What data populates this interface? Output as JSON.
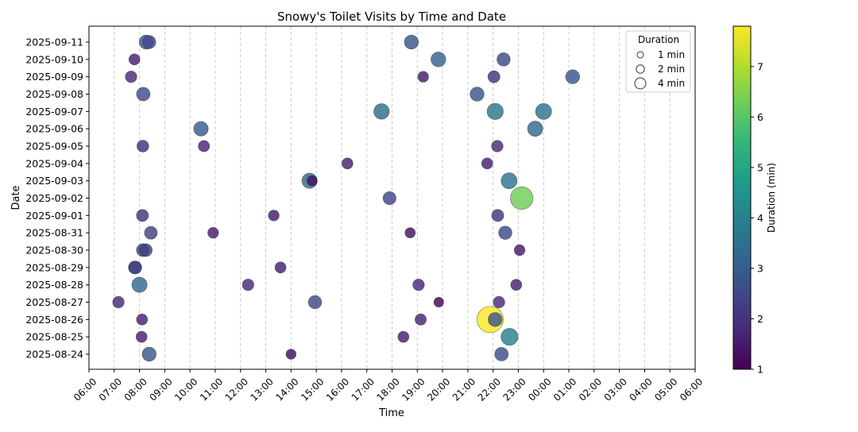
{
  "chart_data": {
    "type": "scatter",
    "title": "Snowy's Toilet Visits by Time and Date",
    "xlabel": "Time",
    "ylabel": "Date",
    "x_ticks": [
      "06:00",
      "07:00",
      "08:00",
      "09:00",
      "10:00",
      "11:00",
      "12:00",
      "13:00",
      "14:00",
      "15:00",
      "16:00",
      "17:00",
      "18:00",
      "19:00",
      "20:00",
      "21:00",
      "22:00",
      "23:00",
      "00:00",
      "01:00",
      "02:00",
      "03:00",
      "04:00",
      "05:00",
      "06:00"
    ],
    "x_range": [
      "06:00",
      "06:00 (next day)"
    ],
    "dates": [
      "2025-08-24",
      "2025-08-25",
      "2025-08-26",
      "2025-08-27",
      "2025-08-28",
      "2025-08-29",
      "2025-08-30",
      "2025-08-31",
      "2025-09-01",
      "2025-09-02",
      "2025-09-03",
      "2025-09-04",
      "2025-09-05",
      "2025-09-06",
      "2025-09-07",
      "2025-09-08",
      "2025-09-09",
      "2025-09-10",
      "2025-09-11"
    ],
    "grid": "vertical dashed",
    "colorbar": {
      "label": "Duration (min)",
      "ticks": [
        1,
        2,
        3,
        4,
        5,
        6,
        7
      ],
      "range": [
        1,
        7.8
      ],
      "colormap": "viridis"
    },
    "legend": {
      "title": "Duration",
      "position": "upper-right",
      "entries": [
        {
          "label": "1 min",
          "duration": 1
        },
        {
          "label": "2 min",
          "duration": 2
        },
        {
          "label": "4 min",
          "duration": 4
        }
      ]
    },
    "points": [
      {
        "date": "2025-08-24",
        "time": "08:23",
        "duration": 2.8
      },
      {
        "date": "2025-08-24",
        "time": "14:00",
        "duration": 1.2
      },
      {
        "date": "2025-08-24",
        "time": "22:20",
        "duration": 2.6
      },
      {
        "date": "2025-08-25",
        "time": "08:05",
        "duration": 1.6
      },
      {
        "date": "2025-08-25",
        "time": "18:27",
        "duration": 1.6
      },
      {
        "date": "2025-08-25",
        "time": "22:39",
        "duration": 4.0
      },
      {
        "date": "2025-08-26",
        "time": "08:06",
        "duration": 1.6
      },
      {
        "date": "2025-08-26",
        "time": "19:08",
        "duration": 1.7
      },
      {
        "date": "2025-08-26",
        "time": "21:53",
        "duration": 7.8
      },
      {
        "date": "2025-08-26",
        "time": "22:05",
        "duration": 2.8
      },
      {
        "date": "2025-08-27",
        "time": "07:10",
        "duration": 1.8
      },
      {
        "date": "2025-08-27",
        "time": "14:57",
        "duration": 2.5
      },
      {
        "date": "2025-08-27",
        "time": "19:51",
        "duration": 1.1
      },
      {
        "date": "2025-08-27",
        "time": "22:14",
        "duration": 1.8
      },
      {
        "date": "2025-08-28",
        "time": "08:00",
        "duration": 3.3
      },
      {
        "date": "2025-08-28",
        "time": "12:18",
        "duration": 1.8
      },
      {
        "date": "2025-08-28",
        "time": "19:03",
        "duration": 1.8
      },
      {
        "date": "2025-08-28",
        "time": "22:55",
        "duration": 1.6
      },
      {
        "date": "2025-08-29",
        "time": "07:49",
        "duration": 2.3
      },
      {
        "date": "2025-08-29",
        "time": "07:50",
        "duration": 2.3
      },
      {
        "date": "2025-08-29",
        "time": "13:35",
        "duration": 1.6
      },
      {
        "date": "2025-08-30",
        "time": "08:08",
        "duration": 2.3
      },
      {
        "date": "2025-08-30",
        "time": "08:15",
        "duration": 2.3
      },
      {
        "date": "2025-08-30",
        "time": "23:03",
        "duration": 1.5
      },
      {
        "date": "2025-08-31",
        "time": "08:27",
        "duration": 2.3
      },
      {
        "date": "2025-08-31",
        "time": "10:55",
        "duration": 1.5
      },
      {
        "date": "2025-08-31",
        "time": "18:43",
        "duration": 1.3
      },
      {
        "date": "2025-08-31",
        "time": "22:29",
        "duration": 2.5
      },
      {
        "date": "2025-09-01",
        "time": "08:07",
        "duration": 2.0
      },
      {
        "date": "2025-09-01",
        "time": "13:19",
        "duration": 1.5
      },
      {
        "date": "2025-09-01",
        "time": "22:11",
        "duration": 2.0
      },
      {
        "date": "2025-09-02",
        "time": "17:54",
        "duration": 2.4
      },
      {
        "date": "2025-09-02",
        "time": "23:08",
        "duration": 6.3
      },
      {
        "date": "2025-09-03",
        "time": "14:44",
        "duration": 3.3
      },
      {
        "date": "2025-09-03",
        "time": "14:50",
        "duration": 1.3
      },
      {
        "date": "2025-09-03",
        "time": "22:38",
        "duration": 3.6
      },
      {
        "date": "2025-09-04",
        "time": "16:14",
        "duration": 1.6
      },
      {
        "date": "2025-09-04",
        "time": "21:46",
        "duration": 1.6
      },
      {
        "date": "2025-09-05",
        "time": "08:08",
        "duration": 1.9
      },
      {
        "date": "2025-09-05",
        "time": "10:33",
        "duration": 1.7
      },
      {
        "date": "2025-09-05",
        "time": "22:10",
        "duration": 1.8
      },
      {
        "date": "2025-09-06",
        "time": "10:26",
        "duration": 3.0
      },
      {
        "date": "2025-09-06",
        "time": "23:40",
        "duration": 3.3
      },
      {
        "date": "2025-09-07",
        "time": "17:35",
        "duration": 3.4
      },
      {
        "date": "2025-09-07",
        "time": "22:05",
        "duration": 3.7
      },
      {
        "date": "2025-09-07",
        "time": "00:00",
        "duration": 3.6
      },
      {
        "date": "2025-09-08",
        "time": "08:09",
        "duration": 2.6
      },
      {
        "date": "2025-09-08",
        "time": "21:22",
        "duration": 2.8
      },
      {
        "date": "2025-09-09",
        "time": "07:40",
        "duration": 1.8
      },
      {
        "date": "2025-09-09",
        "time": "19:14",
        "duration": 1.5
      },
      {
        "date": "2025-09-09",
        "time": "22:02",
        "duration": 2.0
      },
      {
        "date": "2025-09-09",
        "time": "01:09",
        "duration": 2.8
      },
      {
        "date": "2025-09-10",
        "time": "07:48",
        "duration": 1.6
      },
      {
        "date": "2025-09-10",
        "time": "19:50",
        "duration": 3.1
      },
      {
        "date": "2025-09-10",
        "time": "22:25",
        "duration": 2.5
      },
      {
        "date": "2025-09-11",
        "time": "08:16",
        "duration": 2.8
      },
      {
        "date": "2025-09-11",
        "time": "08:23",
        "duration": 2.5
      },
      {
        "date": "2025-09-11",
        "time": "18:46",
        "duration": 2.8
      }
    ]
  }
}
